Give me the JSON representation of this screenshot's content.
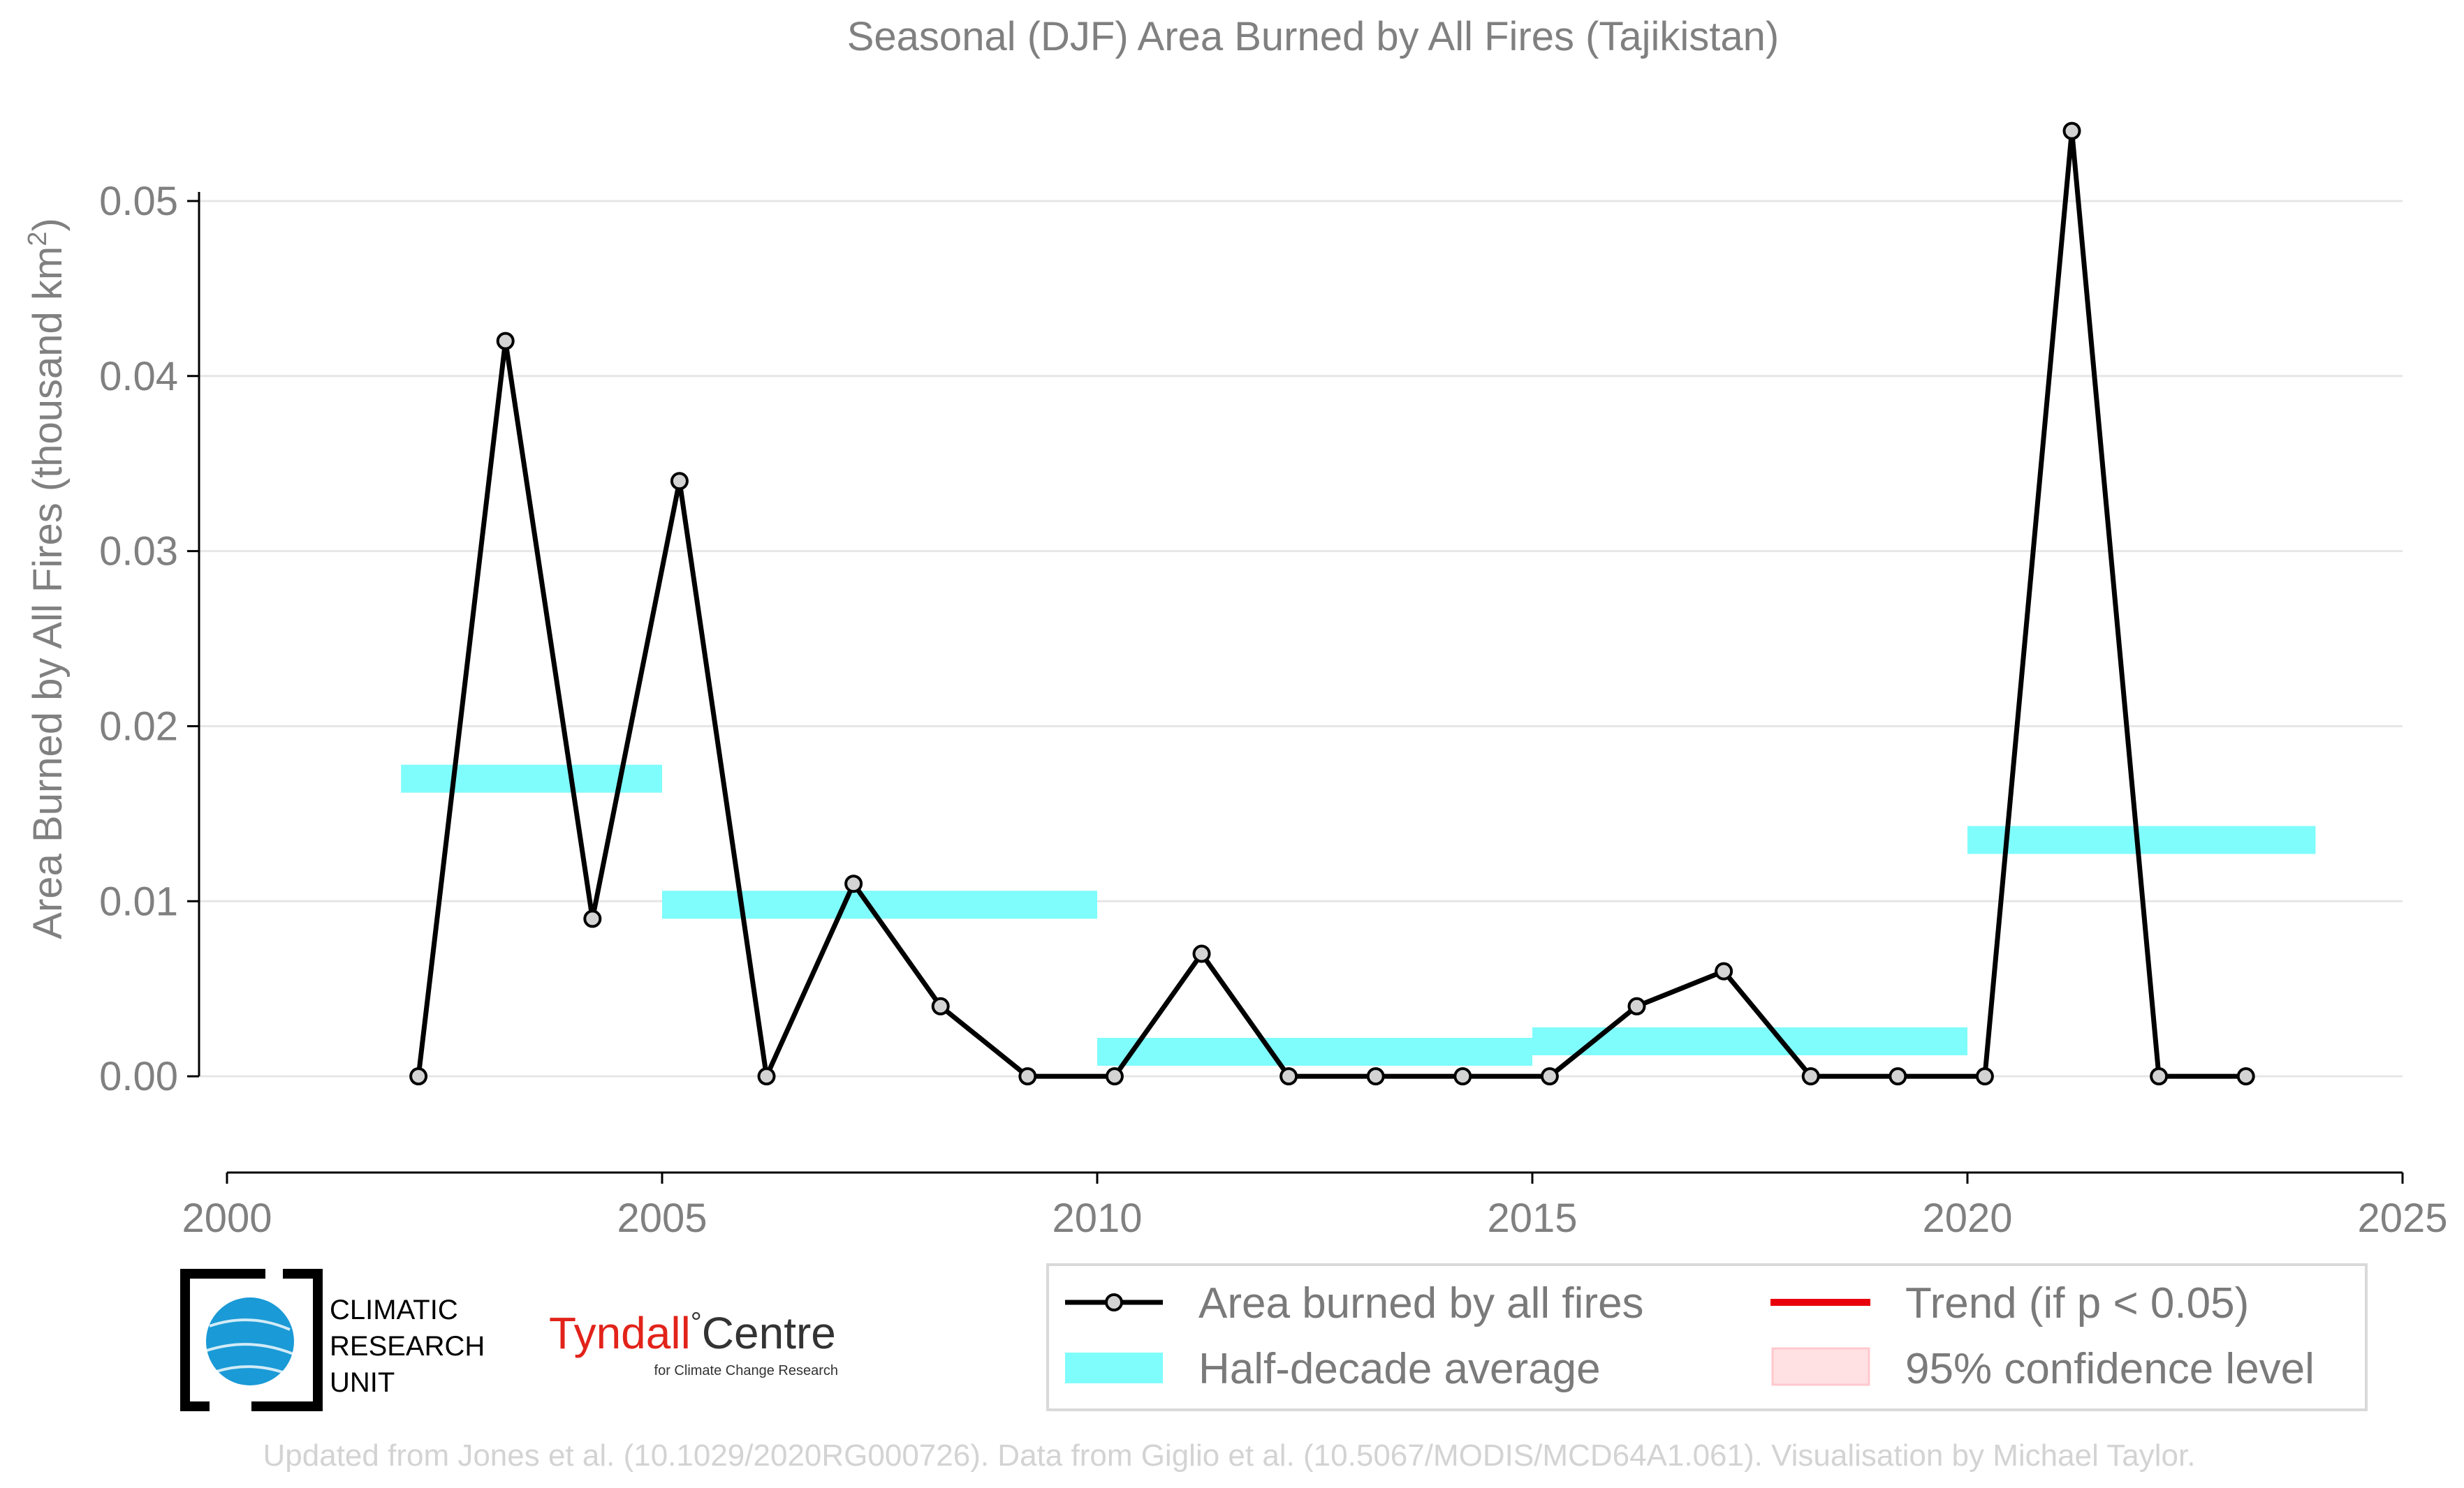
{
  "chart_data": {
    "type": "line",
    "title": "Seasonal (DJF) Area Burned by All Fires (Tajikistan)",
    "ylabel": "Area Burned by All Fires (thousand km²)",
    "ylabel_parts": {
      "pre": "Area Burned by All Fires (thousand km",
      "sup": "2",
      "post": ")"
    },
    "xlabel": "",
    "xlim": [
      2000,
      2025
    ],
    "ylim": [
      -0.0043,
      0.0555
    ],
    "x_ticks": [
      2000,
      2005,
      2010,
      2015,
      2020,
      2025
    ],
    "y_ticks": [
      0.0,
      0.01,
      0.02,
      0.03,
      0.04,
      0.05
    ],
    "y_tick_labels": [
      "0.00",
      "0.01",
      "0.02",
      "0.03",
      "0.04",
      "0.05"
    ],
    "grid": "horizontal",
    "series": [
      {
        "name": "Area burned by all fires",
        "type": "line",
        "color": "#000000",
        "marker_color": "#d3d3d3",
        "x": [
          2002.2,
          2003.2,
          2004.2,
          2005.2,
          2006.2,
          2007.2,
          2008.2,
          2009.2,
          2010.2,
          2011.2,
          2012.2,
          2013.2,
          2014.2,
          2015.2,
          2016.2,
          2017.2,
          2018.2,
          2019.2,
          2020.2,
          2021.2,
          2022.2,
          2023.2
        ],
        "values": [
          0.0,
          0.042,
          0.009,
          0.034,
          0.0,
          0.011,
          0.004,
          0.0,
          0.0,
          0.007,
          0.0,
          0.0,
          0.0,
          0.0,
          0.004,
          0.006,
          0.0,
          0.0,
          0.0,
          0.054,
          0.0,
          0.0
        ]
      },
      {
        "name": "Half-decade average",
        "type": "step",
        "color": "#7ffcfc",
        "segments": [
          {
            "x0": 2002.0,
            "x1": 2005.0,
            "value": 0.017
          },
          {
            "x0": 2005.0,
            "x1": 2010.0,
            "value": 0.0098
          },
          {
            "x0": 2010.0,
            "x1": 2015.0,
            "value": 0.0014
          },
          {
            "x0": 2015.0,
            "x1": 2020.0,
            "value": 0.002
          },
          {
            "x0": 2020.0,
            "x1": 2024.0,
            "value": 0.0135
          }
        ]
      }
    ],
    "legend": {
      "position": "bottom-right",
      "entries": [
        {
          "label": "Area burned by all fires",
          "kind": "line-marker",
          "color": "#000000"
        },
        {
          "label": "Trend (if p < 0.05)",
          "kind": "line",
          "color": "#e8000b"
        },
        {
          "label": "Half-decade average",
          "kind": "band",
          "color": "#7ffcfc"
        },
        {
          "label": "95% confidence level",
          "kind": "patch",
          "color": "#ffe0e3"
        }
      ]
    },
    "credit": "Updated from Jones et al. (10.1029/2020RG000726). Data from Giglio et al. (10.5067/MODIS/MCD64A1.061). Visualisation by Michael Taylor."
  },
  "logos": {
    "cru": {
      "lines": [
        "CLIMATIC",
        "RESEARCH",
        "UNIT"
      ]
    },
    "tyndall": {
      "main": "Tyndall",
      "degree": "°",
      "main2": "Centre",
      "sub": "for Climate Change Research",
      "main_color": "#e2231a"
    }
  }
}
